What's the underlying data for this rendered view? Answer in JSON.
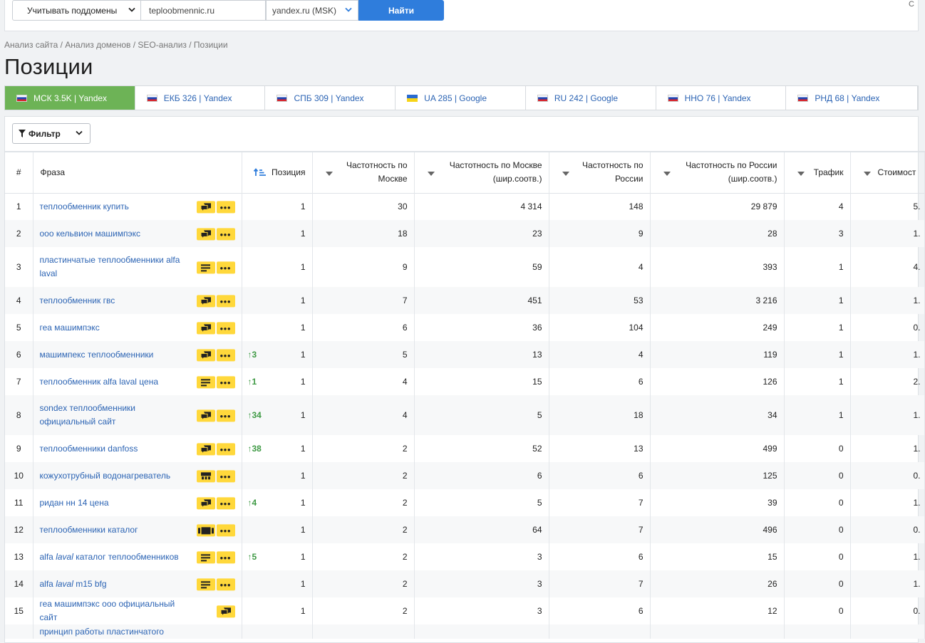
{
  "search": {
    "subdomain_option": "Учитывать поддомены",
    "domain": "teploobmennic.ru",
    "engine": "yandex.ru (MSK)",
    "submit": "Найти",
    "corner": "С"
  },
  "breadcrumb": "Анализ сайта / Анализ доменов / SEO-анализ / Позиции",
  "page_title": "Позиции",
  "tabs": [
    {
      "label": "МСК 3.5K | Yandex",
      "flag": "ru",
      "active": true
    },
    {
      "label": "ЕКБ 326 | Yandex",
      "flag": "ru",
      "active": false
    },
    {
      "label": "СПБ 309 | Yandex",
      "flag": "ru",
      "active": false
    },
    {
      "label": "UA 285 | Google",
      "flag": "ua",
      "active": false
    },
    {
      "label": "RU 242 | Google",
      "flag": "ru",
      "active": false
    },
    {
      "label": "ННО 76 | Yandex",
      "flag": "ru",
      "active": false
    },
    {
      "label": "РНД 68 | Yandex",
      "flag": "ru",
      "active": false
    }
  ],
  "filter_label": "Фильтр",
  "columns": {
    "num": "#",
    "phrase": "Фраза",
    "position": "Позиция",
    "freq_msk": "Частотность по Москве",
    "freq_msk_broad": "Частотность по Москве (шир.соотв.)",
    "freq_ru": "Частотность по России",
    "freq_ru_broad": "Частотность по России (шир.соотв.)",
    "traffic": "Трафик",
    "cost": "Стоимост"
  },
  "rows": [
    {
      "n": "1",
      "phrase": "теплообменник купить",
      "badge": "chat-icon",
      "more": true,
      "delta": "",
      "pos": "1",
      "fm": "30",
      "fmb": "4 314",
      "fr": "148",
      "frb": "29 879",
      "tr": "4",
      "cost": "5."
    },
    {
      "n": "2",
      "phrase": "ооо кельвион машимпэкс",
      "badge": "chat-icon",
      "more": true,
      "delta": "",
      "pos": "1",
      "fm": "18",
      "fmb": "23",
      "fr": "9",
      "frb": "28",
      "tr": "3",
      "cost": "1."
    },
    {
      "n": "3",
      "phrase": "пластинчатые теплообменники alfa laval",
      "badge": "lines-icon",
      "more": true,
      "delta": "",
      "pos": "1",
      "fm": "9",
      "fmb": "59",
      "fr": "4",
      "frb": "393",
      "tr": "1",
      "cost": "4."
    },
    {
      "n": "4",
      "phrase": "теплообменник гвс",
      "badge": "chat-icon",
      "more": true,
      "delta": "",
      "pos": "1",
      "fm": "7",
      "fmb": "451",
      "fr": "53",
      "frb": "3 216",
      "tr": "1",
      "cost": "1."
    },
    {
      "n": "5",
      "phrase": "геа машимпэкс",
      "badge": "chat-icon",
      "more": true,
      "delta": "",
      "pos": "1",
      "fm": "6",
      "fmb": "36",
      "fr": "104",
      "frb": "249",
      "tr": "1",
      "cost": "0."
    },
    {
      "n": "6",
      "phrase": "машимпекс теплообменники",
      "badge": "chat-icon",
      "more": true,
      "delta": "↑3",
      "pos": "1",
      "fm": "5",
      "fmb": "13",
      "fr": "4",
      "frb": "119",
      "tr": "1",
      "cost": "1."
    },
    {
      "n": "7",
      "phrase": "теплообменник alfa laval цена",
      "badge": "lines-icon",
      "more": true,
      "delta": "↑1",
      "pos": "1",
      "fm": "4",
      "fmb": "15",
      "fr": "6",
      "frb": "126",
      "tr": "1",
      "cost": "2."
    },
    {
      "n": "8",
      "phrase": "sondex теплообменники официальный сайт",
      "badge": "chat-icon",
      "more": true,
      "delta": "↑34",
      "pos": "1",
      "fm": "4",
      "fmb": "5",
      "fr": "18",
      "frb": "34",
      "tr": "1",
      "cost": "1."
    },
    {
      "n": "9",
      "phrase": "теплообменники danfoss",
      "badge": "chat-icon",
      "more": true,
      "delta": "↑38",
      "pos": "1",
      "fm": "2",
      "fmb": "52",
      "fr": "13",
      "frb": "499",
      "tr": "0",
      "cost": "1."
    },
    {
      "n": "10",
      "phrase": "кожухотрубный водонагреватель",
      "badge": "store-icon",
      "more": true,
      "delta": "",
      "pos": "1",
      "fm": "2",
      "fmb": "6",
      "fr": "6",
      "frb": "125",
      "tr": "0",
      "cost": "0."
    },
    {
      "n": "11",
      "phrase": "ридан нн 14 цена",
      "badge": "chat-icon",
      "more": true,
      "delta": "↑4",
      "pos": "1",
      "fm": "2",
      "fmb": "5",
      "fr": "7",
      "frb": "39",
      "tr": "0",
      "cost": "1."
    },
    {
      "n": "12",
      "phrase": "теплообменники каталог",
      "badge": "gallery-icon",
      "more": true,
      "delta": "",
      "pos": "1",
      "fm": "2",
      "fmb": "64",
      "fr": "7",
      "frb": "496",
      "tr": "0",
      "cost": "0."
    },
    {
      "n": "13",
      "phrase_pre": "alfa ",
      "phrase_em": "laval",
      "phrase_post": " каталог теплообменников",
      "badge": "lines-icon",
      "more": true,
      "delta": "↑5",
      "pos": "1",
      "fm": "2",
      "fmb": "3",
      "fr": "6",
      "frb": "15",
      "tr": "0",
      "cost": "1."
    },
    {
      "n": "14",
      "phrase_pre": "alfa ",
      "phrase_em": "laval",
      "phrase_post": " m15 bfg",
      "badge": "lines-icon",
      "more": true,
      "delta": "",
      "pos": "1",
      "fm": "2",
      "fmb": "3",
      "fr": "7",
      "frb": "26",
      "tr": "0",
      "cost": "1."
    },
    {
      "n": "15",
      "phrase": "геа машимпэкс ооо официальный сайт",
      "badge": "chat-icon",
      "more": false,
      "delta": "",
      "pos": "1",
      "fm": "2",
      "fmb": "3",
      "fr": "6",
      "frb": "12",
      "tr": "0",
      "cost": "0."
    },
    {
      "n": "",
      "phrase": "принцип работы пластинчатого",
      "badge": "",
      "more": false,
      "delta": "",
      "pos": "",
      "fm": "",
      "fmb": "",
      "fr": "",
      "frb": "",
      "tr": "",
      "cost": ""
    }
  ],
  "colors": {
    "accent": "#2f7ddc",
    "active_tab": "#6db356",
    "badge": "#ffd83b",
    "link": "#2c64b4",
    "up": "#3f9a45"
  }
}
